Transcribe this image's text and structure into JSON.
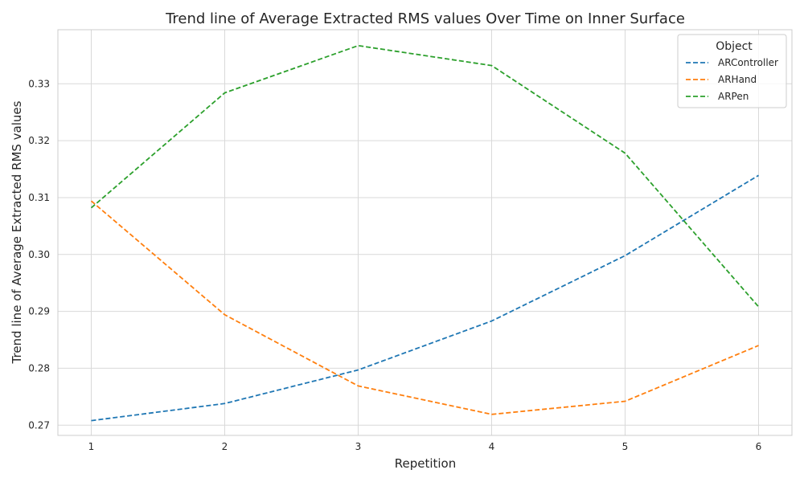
{
  "chart_data": {
    "type": "line",
    "title": "Trend line of Average Extracted RMS values Over Time on Inner Surface",
    "xlabel": "Repetition",
    "ylabel": "Trend line of Average Extracted RMS values",
    "x": [
      1,
      2,
      3,
      4,
      5,
      6
    ],
    "xlim": [
      0.75,
      6.25
    ],
    "ylim": [
      0.2682,
      0.3395
    ],
    "yticks": [
      0.27,
      0.28,
      0.29,
      0.3,
      0.31,
      0.32,
      0.33
    ],
    "ytick_labels": [
      "0.27",
      "0.28",
      "0.29",
      "0.30",
      "0.31",
      "0.32",
      "0.33"
    ],
    "xtick_labels": [
      "1",
      "2",
      "3",
      "4",
      "5",
      "6"
    ],
    "grid": true,
    "line_style": "dashed",
    "legend": {
      "title": "Object",
      "position": "top-right"
    },
    "series": [
      {
        "name": "ARController",
        "color": "#1f77b4",
        "values": [
          0.2708,
          0.2738,
          0.2797,
          0.2883,
          0.2998,
          0.3139
        ]
      },
      {
        "name": "ARHand",
        "color": "#ff7f0e",
        "values": [
          0.3094,
          0.2894,
          0.2769,
          0.2719,
          0.2742,
          0.284
        ]
      },
      {
        "name": "ARPen",
        "color": "#2ca02c",
        "values": [
          0.3082,
          0.3284,
          0.3367,
          0.3332,
          0.3178,
          0.2908
        ]
      }
    ]
  }
}
